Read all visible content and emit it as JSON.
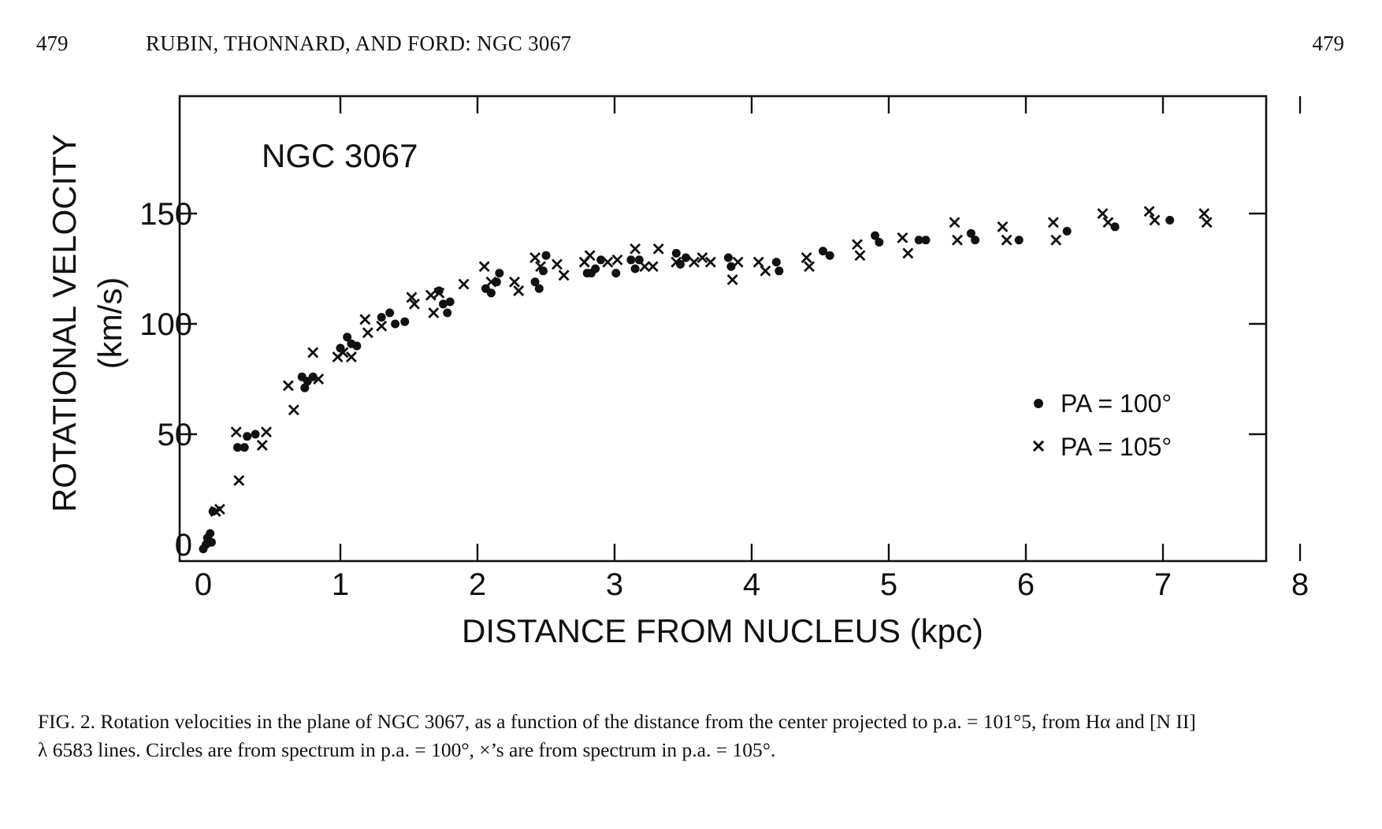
{
  "header": {
    "page_left": "479",
    "running_title": "RUBIN, THONNARD, AND FORD: NGC 3067",
    "page_right": "479"
  },
  "caption": {
    "line1": "FIG. 2. Rotation velocities in the plane of NGC 3067, as a function of the distance from the center projected to p.a. = 101°5, from Hα and [N II]",
    "line2": "λ 6583 lines. Circles are from spectrum in p.a. = 100°, ×’s are from spectrum in p.a. = 105°."
  },
  "chart_data": {
    "type": "scatter",
    "title": "NGC 3067",
    "xlabel": "DISTANCE FROM NUCLEUS (kpc)",
    "ylabel": "ROTATIONAL VELOCITY",
    "ylabel_unit": "(km/s)",
    "xlim": [
      0,
      8.4
    ],
    "ylim": [
      -5,
      210
    ],
    "x_ticks": [
      "0",
      "1",
      "2",
      "3",
      "4",
      "5",
      "6",
      "7",
      "8"
    ],
    "y_ticks": [
      "0",
      "50",
      "100",
      "150"
    ],
    "grid": false,
    "legend_position": "right",
    "series": [
      {
        "name": "PA = 100°",
        "marker": "circle",
        "points": [
          [
            0.0,
            -2
          ],
          [
            0.02,
            0
          ],
          [
            0.04,
            1
          ],
          [
            0.06,
            1
          ],
          [
            0.03,
            3
          ],
          [
            0.05,
            5
          ],
          [
            0.07,
            15
          ],
          [
            0.25,
            44
          ],
          [
            0.3,
            44
          ],
          [
            0.32,
            49
          ],
          [
            0.38,
            50
          ],
          [
            0.72,
            76
          ],
          [
            0.74,
            71
          ],
          [
            0.76,
            74
          ],
          [
            0.8,
            76
          ],
          [
            1.0,
            89
          ],
          [
            1.05,
            94
          ],
          [
            1.08,
            91
          ],
          [
            1.12,
            90
          ],
          [
            1.3,
            103
          ],
          [
            1.36,
            105
          ],
          [
            1.4,
            100
          ],
          [
            1.47,
            101
          ],
          [
            1.72,
            115
          ],
          [
            1.75,
            109
          ],
          [
            1.78,
            105
          ],
          [
            1.8,
            110
          ],
          [
            2.06,
            116
          ],
          [
            2.1,
            114
          ],
          [
            2.14,
            119
          ],
          [
            2.16,
            123
          ],
          [
            2.42,
            119
          ],
          [
            2.45,
            116
          ],
          [
            2.48,
            124
          ],
          [
            2.5,
            131
          ],
          [
            2.8,
            123
          ],
          [
            2.83,
            123
          ],
          [
            2.86,
            125
          ],
          [
            2.9,
            129
          ],
          [
            3.01,
            123
          ],
          [
            3.12,
            129
          ],
          [
            3.15,
            125
          ],
          [
            3.18,
            129
          ],
          [
            3.45,
            132
          ],
          [
            3.48,
            127
          ],
          [
            3.52,
            130
          ],
          [
            3.83,
            130
          ],
          [
            3.85,
            126
          ],
          [
            4.18,
            128
          ],
          [
            4.2,
            124
          ],
          [
            4.52,
            133
          ],
          [
            4.57,
            131
          ],
          [
            4.9,
            140
          ],
          [
            4.93,
            137
          ],
          [
            5.22,
            138
          ],
          [
            5.27,
            138
          ],
          [
            5.6,
            141
          ],
          [
            5.63,
            138
          ],
          [
            5.95,
            138
          ],
          [
            6.3,
            142
          ],
          [
            6.65,
            144
          ],
          [
            7.05,
            147
          ]
        ]
      },
      {
        "name": "PA = 105°",
        "marker": "cross",
        "points": [
          [
            0.09,
            15
          ],
          [
            0.12,
            16
          ],
          [
            0.24,
            51
          ],
          [
            0.26,
            29
          ],
          [
            0.43,
            45
          ],
          [
            0.46,
            51
          ],
          [
            0.62,
            72
          ],
          [
            0.66,
            61
          ],
          [
            0.8,
            87
          ],
          [
            0.84,
            75
          ],
          [
            0.98,
            85
          ],
          [
            1.02,
            87
          ],
          [
            1.08,
            85
          ],
          [
            1.18,
            102
          ],
          [
            1.2,
            96
          ],
          [
            1.3,
            99
          ],
          [
            1.52,
            112
          ],
          [
            1.54,
            109
          ],
          [
            1.66,
            113
          ],
          [
            1.68,
            105
          ],
          [
            1.72,
            114
          ],
          [
            1.9,
            118
          ],
          [
            2.05,
            126
          ],
          [
            2.1,
            119
          ],
          [
            2.27,
            119
          ],
          [
            2.3,
            115
          ],
          [
            2.42,
            130
          ],
          [
            2.46,
            126
          ],
          [
            2.58,
            127
          ],
          [
            2.63,
            122
          ],
          [
            2.78,
            128
          ],
          [
            2.82,
            131
          ],
          [
            2.95,
            128
          ],
          [
            3.02,
            129
          ],
          [
            3.15,
            134
          ],
          [
            3.22,
            126
          ],
          [
            3.28,
            126
          ],
          [
            3.32,
            134
          ],
          [
            3.45,
            128
          ],
          [
            3.58,
            128
          ],
          [
            3.64,
            130
          ],
          [
            3.7,
            128
          ],
          [
            3.86,
            120
          ],
          [
            3.9,
            128
          ],
          [
            4.05,
            128
          ],
          [
            4.1,
            124
          ],
          [
            4.4,
            130
          ],
          [
            4.42,
            126
          ],
          [
            4.77,
            136
          ],
          [
            4.79,
            131
          ],
          [
            5.1,
            139
          ],
          [
            5.14,
            132
          ],
          [
            5.48,
            146
          ],
          [
            5.5,
            138
          ],
          [
            5.83,
            144
          ],
          [
            5.86,
            138
          ],
          [
            6.2,
            146
          ],
          [
            6.22,
            138
          ],
          [
            6.56,
            150
          ],
          [
            6.6,
            146
          ],
          [
            6.9,
            151
          ],
          [
            6.94,
            147
          ],
          [
            7.3,
            150
          ],
          [
            7.32,
            146
          ]
        ]
      }
    ]
  }
}
